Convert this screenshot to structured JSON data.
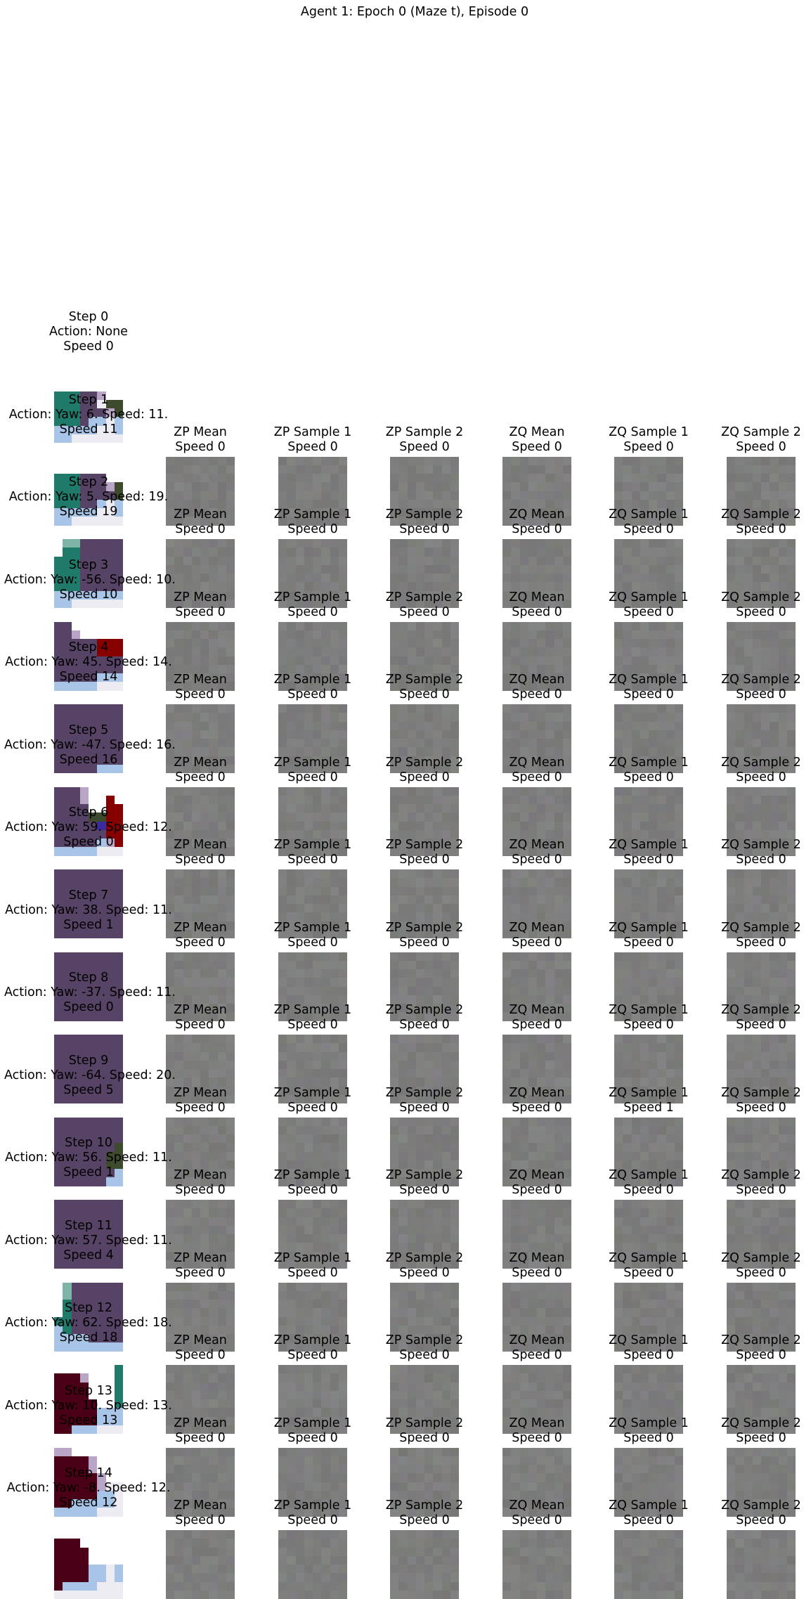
{
  "figure": {
    "title": "Agent 1: Epoch 0 (Maze t), Episode 0"
  },
  "columns": [
    "ZP Mean",
    "ZP Sample 1",
    "ZP Sample 2",
    "ZQ Mean",
    "ZQ Sample 1",
    "ZQ Sample 2"
  ],
  "steps": [
    {
      "step": "Step 0",
      "action": "Action: None",
      "speed": "Speed 0",
      "panel_speeds": []
    },
    {
      "step": "Step 1",
      "action": "Action: Yaw: 6. Speed: 11.",
      "speed": "Speed 11",
      "panel_speeds": [
        "Speed 0",
        "Speed 0",
        "Speed 0",
        "Speed 0",
        "Speed 0",
        "Speed 0"
      ]
    },
    {
      "step": "Step 2",
      "action": "Action: Yaw: 5. Speed: 19.",
      "speed": "Speed 19",
      "panel_speeds": [
        "Speed 0",
        "Speed 0",
        "Speed 0",
        "Speed 0",
        "Speed 0",
        "Speed 0"
      ]
    },
    {
      "step": "Step 3",
      "action": "Action: Yaw: -56. Speed: 10.",
      "speed": "Speed 10",
      "panel_speeds": [
        "Speed 0",
        "Speed 0",
        "Speed 0",
        "Speed 0",
        "Speed 0",
        "Speed 0"
      ]
    },
    {
      "step": "Step 4",
      "action": "Action: Yaw: 45. Speed: 14.",
      "speed": "Speed 14",
      "panel_speeds": [
        "Speed 0",
        "Speed 0",
        "Speed 0",
        "Speed 0",
        "Speed 0",
        "Speed 0"
      ]
    },
    {
      "step": "Step 5",
      "action": "Action: Yaw: -47. Speed: 16.",
      "speed": "Speed 16",
      "panel_speeds": [
        "Speed 0",
        "Speed 0",
        "Speed 0",
        "Speed 0",
        "Speed 0",
        "Speed 0"
      ]
    },
    {
      "step": "Step 6",
      "action": "Action: Yaw: 59. Speed: 12.",
      "speed": "Speed 0",
      "panel_speeds": [
        "Speed 0",
        "Speed 0",
        "Speed 0",
        "Speed 0",
        "Speed 0",
        "Speed 0"
      ]
    },
    {
      "step": "Step 7",
      "action": "Action: Yaw: 38. Speed: 11.",
      "speed": "Speed 1",
      "panel_speeds": [
        "Speed 0",
        "Speed 0",
        "Speed 0",
        "Speed 0",
        "Speed 0",
        "Speed 0"
      ]
    },
    {
      "step": "Step 8",
      "action": "Action: Yaw: -37. Speed: 11.",
      "speed": "Speed 0",
      "panel_speeds": [
        "Speed 0",
        "Speed 0",
        "Speed 0",
        "Speed 0",
        "Speed 0",
        "Speed 0"
      ]
    },
    {
      "step": "Step 9",
      "action": "Action: Yaw: -64. Speed: 20.",
      "speed": "Speed 5",
      "panel_speeds": [
        "Speed 0",
        "Speed 0",
        "Speed 0",
        "Speed 0",
        "Speed 1",
        "Speed 0"
      ]
    },
    {
      "step": "Step 10",
      "action": "Action: Yaw: 56. Speed: 11.",
      "speed": "Speed 1",
      "panel_speeds": [
        "Speed 0",
        "Speed 0",
        "Speed 0",
        "Speed 0",
        "Speed 0",
        "Speed 0"
      ]
    },
    {
      "step": "Step 11",
      "action": "Action: Yaw: 57. Speed: 11.",
      "speed": "Speed 4",
      "panel_speeds": [
        "Speed 0",
        "Speed 0",
        "Speed 0",
        "Speed 0",
        "Speed 0",
        "Speed 0"
      ]
    },
    {
      "step": "Step 12",
      "action": "Action: Yaw: 62. Speed: 18.",
      "speed": "Speed 18",
      "panel_speeds": [
        "Speed 0",
        "Speed 0",
        "Speed 0",
        "Speed 0",
        "Speed 0",
        "Speed 0"
      ]
    },
    {
      "step": "Step 13",
      "action": "Action: Yaw: 10. Speed: 13.",
      "speed": "Speed 13",
      "panel_speeds": [
        "Speed 0",
        "Speed 0",
        "Speed 0",
        "Speed 0",
        "Speed 0",
        "Speed 0"
      ]
    },
    {
      "step": "Step 14",
      "action": "Action: Yaw: -8. Speed: 12.",
      "speed": "Speed 12",
      "panel_speeds": [
        "Speed 0",
        "Speed 0",
        "Speed 0",
        "Speed 0",
        "Speed 0",
        "Speed 0"
      ]
    }
  ],
  "colors": {
    "background": "#ffffff",
    "latent_gray": "#7e807d",
    "maze_purple": "#574366",
    "maze_teal": "#1f7a6a",
    "maze_red": "#870000",
    "maze_darkred": "#4a0016",
    "maze_lightblue": "#a8c4e6",
    "maze_olive": "#3e4a2c"
  }
}
